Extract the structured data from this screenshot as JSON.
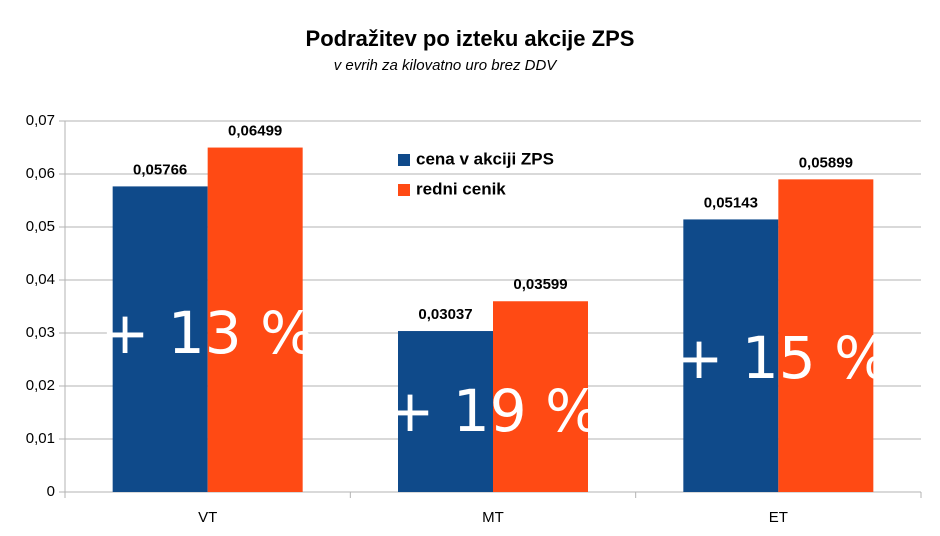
{
  "chart_data": {
    "type": "bar",
    "title": "Podražitev po izteku akcije ZPS",
    "subtitle": "v evrih za kilovatno uro brez DDV",
    "categories": [
      "VT",
      "MT",
      "ET"
    ],
    "series": [
      {
        "name": "cena v akciji ZPS",
        "color": "#0f4a8a",
        "values": [
          0.05766,
          0.03037,
          0.05143
        ],
        "value_labels": [
          "0,05766",
          "0,03037",
          "0,05143"
        ]
      },
      {
        "name": "redni cenik",
        "color": "#ff4a14",
        "values": [
          0.06499,
          0.03599,
          0.05899
        ],
        "value_labels": [
          "0,06499",
          "0,03599",
          "0,05899"
        ]
      }
    ],
    "ylim": [
      0,
      0.07
    ],
    "yticks": [
      0,
      {
        "value": 0.01,
        "label": "0,01"
      },
      {
        "value": 0.02,
        "label": "0,02"
      },
      {
        "value": 0.03,
        "label": "0,03"
      },
      {
        "value": 0.04,
        "label": "0,04"
      },
      {
        "value": 0.05,
        "label": "0,05"
      },
      {
        "value": 0.06,
        "label": "0,06"
      },
      {
        "value": 0.07,
        "label": "0,07"
      }
    ],
    "grid": true,
    "annotations": [
      "+ 13 %",
      "+ 19 %",
      "+ 15 %"
    ]
  }
}
